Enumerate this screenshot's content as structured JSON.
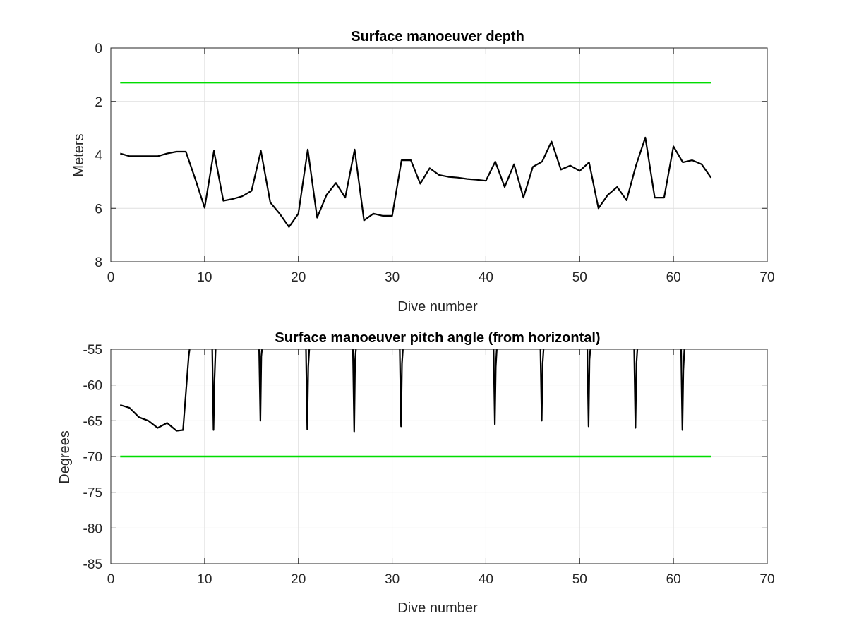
{
  "chart_data": [
    {
      "type": "line",
      "title": "Surface manoeuver depth",
      "xlabel": "Dive number",
      "ylabel": "Meters",
      "xlim": [
        0,
        70
      ],
      "ylim": [
        0,
        8
      ],
      "y_reversed": true,
      "xticks": [
        "0",
        "10",
        "20",
        "30",
        "40",
        "50",
        "60",
        "70"
      ],
      "yticks": [
        "0",
        "2",
        "4",
        "6",
        "8"
      ],
      "grid": true,
      "series": [
        {
          "color": "#000000",
          "x": [
            1,
            2,
            3,
            4,
            5,
            6,
            7,
            8,
            9,
            10,
            11,
            12,
            13,
            14,
            15,
            16,
            17,
            18,
            19,
            20,
            21,
            22,
            23,
            24,
            25,
            26,
            27,
            28,
            29,
            30,
            31,
            32,
            33,
            34,
            35,
            36,
            37,
            38,
            39,
            40,
            41,
            42,
            43,
            44,
            45,
            46,
            47,
            48,
            49,
            50,
            51,
            52,
            53,
            54,
            55,
            56,
            57,
            58,
            59,
            60,
            61,
            62,
            63,
            64
          ],
          "y": [
            3.95,
            4.05,
            4.05,
            4.05,
            4.05,
            3.95,
            3.88,
            3.88,
            4.9,
            5.98,
            3.85,
            5.72,
            5.65,
            5.55,
            5.35,
            3.85,
            5.78,
            6.2,
            6.7,
            6.2,
            3.8,
            6.35,
            5.5,
            5.05,
            5.6,
            3.8,
            6.45,
            6.2,
            6.28,
            6.28,
            4.2,
            4.2,
            5.08,
            4.5,
            4.75,
            4.82,
            4.85,
            4.9,
            4.93,
            4.97,
            4.25,
            5.2,
            4.35,
            5.6,
            4.45,
            4.25,
            3.5,
            4.55,
            4.4,
            4.6,
            4.28,
            6.0,
            5.5,
            5.2,
            5.7,
            4.4,
            3.35,
            5.6,
            5.6,
            3.68,
            4.28,
            4.2,
            4.35,
            4.85
          ]
        },
        {
          "color": "#00dd00",
          "x": [
            1,
            64
          ],
          "y": [
            1.3,
            1.3
          ]
        }
      ]
    },
    {
      "type": "line",
      "title": "Surface manoeuver pitch angle (from horizontal)",
      "xlabel": "Dive number",
      "ylabel": "Degrees",
      "xlim": [
        0,
        70
      ],
      "ylim": [
        -85,
        -55
      ],
      "xticks": [
        "0",
        "10",
        "20",
        "30",
        "40",
        "50",
        "60",
        "70"
      ],
      "yticks": [
        "-55",
        "-60",
        "-65",
        "-70",
        "-75",
        "-80",
        "-85"
      ],
      "grid": true,
      "series": [
        {
          "color": "#000000",
          "x": [
            1,
            2,
            3,
            4,
            5,
            6,
            7,
            7.7,
            8.3,
            8.5,
            10.8,
            10.95,
            11.05,
            11.2,
            15.8,
            15.95,
            16.05,
            16.2,
            20.8,
            20.95,
            21.05,
            21.2,
            25.8,
            25.95,
            26.05,
            26.2,
            30.8,
            30.95,
            31.05,
            31.2,
            40.8,
            40.95,
            41.05,
            41.2,
            45.8,
            45.95,
            46.05,
            46.2,
            50.8,
            50.95,
            51.05,
            51.2,
            55.8,
            55.95,
            56.05,
            56.2,
            60.8,
            60.95,
            61.05,
            61.2
          ],
          "y": [
            -62.8,
            -63.2,
            -64.5,
            -65.0,
            -66.0,
            -65.3,
            -66.4,
            -66.3,
            -56.0,
            -54.0,
            -54.0,
            -66.3,
            -59.5,
            -54.0,
            -54.0,
            -65.0,
            -56.0,
            -54.0,
            -54.0,
            -66.2,
            -57.5,
            -54.0,
            -54.0,
            -66.5,
            -56.5,
            -54.0,
            -54.0,
            -65.8,
            -57.0,
            -54.0,
            -54.0,
            -65.5,
            -57.5,
            -54.0,
            -54.0,
            -65.0,
            -57.0,
            -54.0,
            -54.0,
            -65.8,
            -56.5,
            -54.0,
            -54.0,
            -66.0,
            -57.0,
            -54.0,
            -54.0,
            -66.3,
            -58.0,
            -54.0
          ]
        },
        {
          "color": "#00dd00",
          "x": [
            1,
            64
          ],
          "y": [
            -70,
            -70
          ]
        }
      ]
    }
  ]
}
